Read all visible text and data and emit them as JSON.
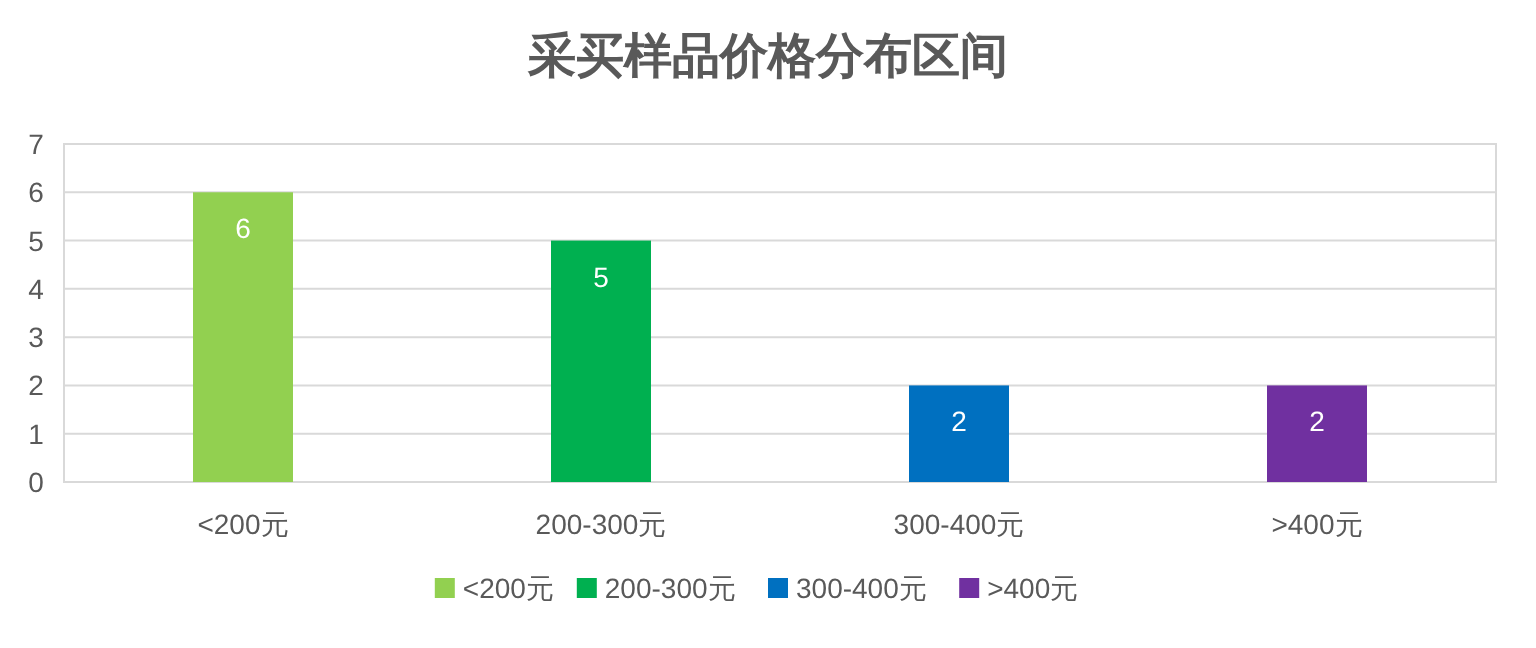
{
  "chart_data": {
    "type": "bar",
    "title": "采买样品价格分布区间",
    "categories": [
      "<200元",
      "200-300元",
      "300-400元",
      ">400元"
    ],
    "series": [
      {
        "name": "<200元",
        "color": "#92d050",
        "values": [
          6,
          null,
          null,
          null
        ]
      },
      {
        "name": "200-300元",
        "color": "#00b050",
        "values": [
          null,
          5,
          null,
          null
        ]
      },
      {
        "name": "300-400元",
        "color": "#0070c0",
        "values": [
          null,
          null,
          2,
          null
        ]
      },
      {
        "name": ">400元",
        "color": "#7030a0",
        "values": [
          null,
          null,
          null,
          2
        ]
      }
    ],
    "ylim": [
      0,
      7
    ],
    "yticks": [
      0,
      1,
      2,
      3,
      4,
      5,
      6,
      7
    ],
    "grid": "y",
    "data_labels": true,
    "legend": "bottom"
  }
}
